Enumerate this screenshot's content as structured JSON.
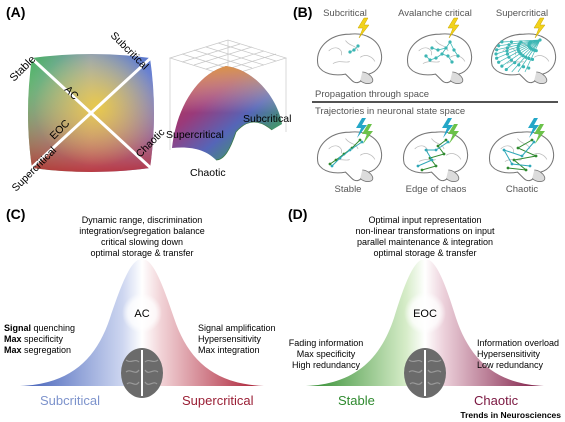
{
  "panels": {
    "A": {
      "letter": "(A)",
      "square_labels": {
        "stable": "Stable",
        "subcritical": "Subcritical",
        "supercritical": "Supercritical",
        "chaotic": "Chaotic",
        "ac": "AC",
        "eoc": "EOC"
      },
      "surface_labels": {
        "supercritical": "Supercritical",
        "subcritical": "Subcritical",
        "chaotic": "Chaotic"
      }
    },
    "B": {
      "letter": "(B)",
      "top_titles": [
        "Subcritical",
        "Avalanche critical",
        "Supercritical"
      ],
      "row1_caption": "Propagation through space",
      "row2_caption": "Trajectories in neuronal state space",
      "bottom_titles": [
        "Stable",
        "Edge of chaos",
        "Chaotic"
      ]
    },
    "C": {
      "letter": "(C)",
      "top_lines": [
        "Dynamic range, discrimination",
        "integration/segregation balance",
        "critical slowing down",
        "optimal storage & transfer"
      ],
      "center": "AC",
      "left_lines": [
        {
          "bold": "Signal",
          "rest": " quenching"
        },
        {
          "bold": "Max",
          "rest": " specificity"
        },
        {
          "bold": "Max",
          "rest": " segregation"
        }
      ],
      "right_lines": [
        "Signal amplification",
        "Hypersensitivity",
        "Max integration"
      ],
      "left_regime": "Subcritical",
      "right_regime": "Supercritical"
    },
    "D": {
      "letter": "(D)",
      "top_lines": [
        "Optimal input representation",
        "non-linear transformations on input",
        "parallel maintenance & integration",
        "optimal storage & transfer"
      ],
      "center": "EOC",
      "left_lines": [
        "Fading information",
        "Max specificity",
        "High redundancy"
      ],
      "right_lines": [
        "Information overload",
        "Hypersensitivity",
        "Low redundancy"
      ],
      "left_regime": "Stable",
      "right_regime": "Chaotic"
    },
    "footer": "Trends in Neurosciences"
  },
  "colors": {
    "subcritical_blue": "#4a64b4",
    "supercritical_red": "#a8182e",
    "stable_green": "#2f8a2f",
    "chaotic_maroon": "#7a1640",
    "node_teal": "#3cb6b4",
    "bolt_yellow": "#f2d21b",
    "bolt_teal": "#24a7c7",
    "bolt_green": "#6cc24a"
  }
}
